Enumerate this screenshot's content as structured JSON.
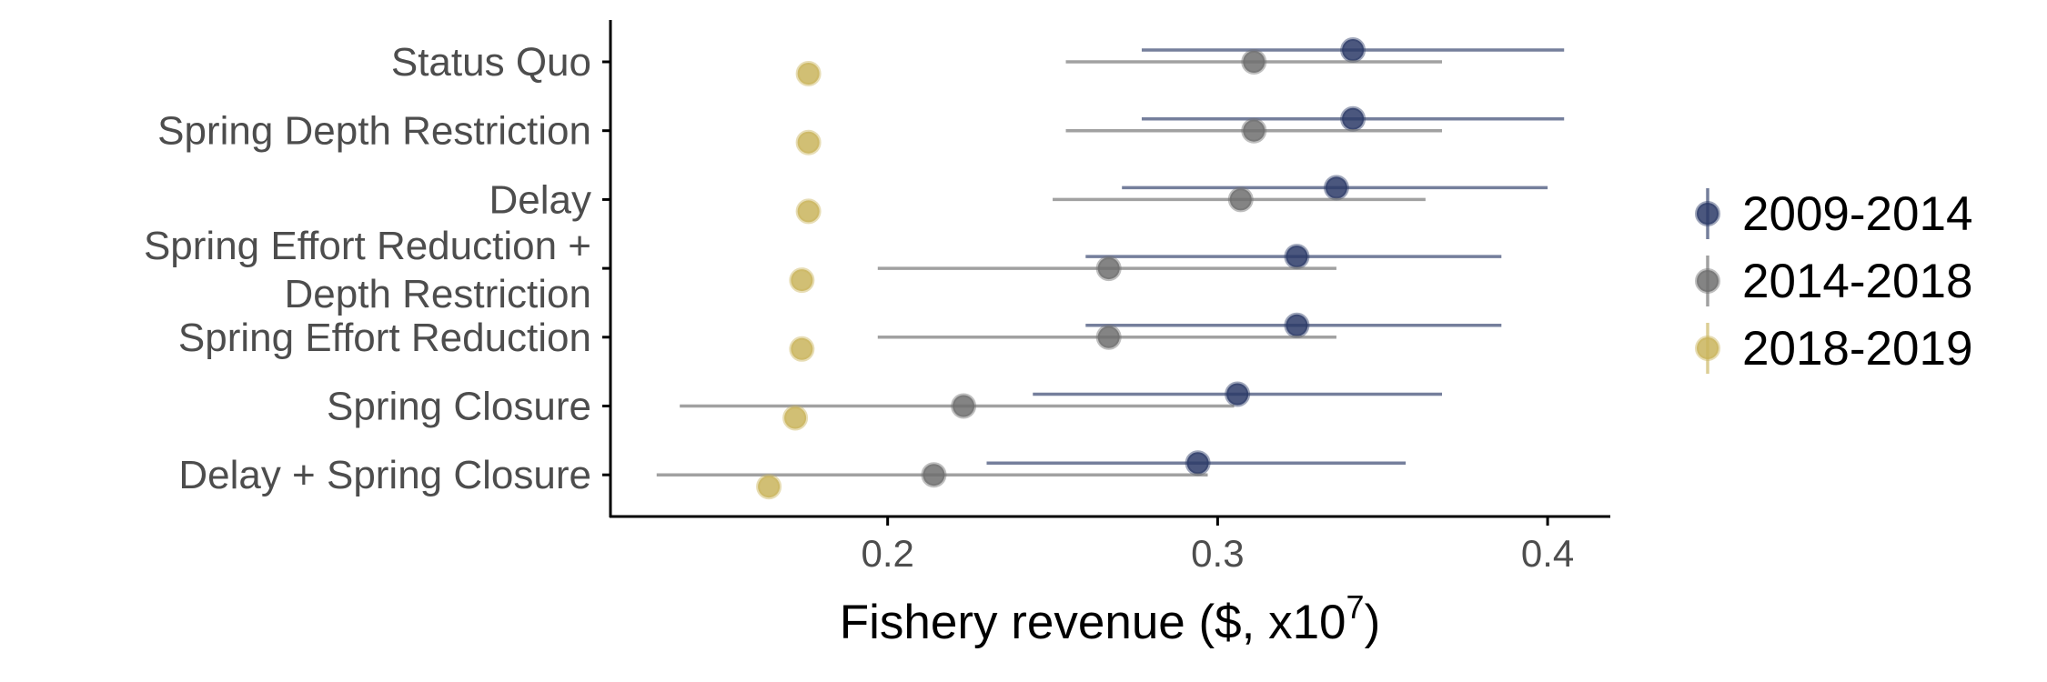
{
  "chart_data": {
    "type": "scatter",
    "subtype": "dot-and-whisker",
    "title": "",
    "xlabel": {
      "prefix": "Fishery revenue ($, x10",
      "superscript": "7",
      "suffix": ")"
    },
    "ylabel": "",
    "xlim": [
      0.116,
      0.419
    ],
    "xticks": [
      0.2,
      0.3,
      0.4
    ],
    "xtick_labels": [
      "0.2",
      "0.3",
      "0.4"
    ],
    "grid": false,
    "legend_position": "right",
    "categories": [
      [
        "Status Quo"
      ],
      [
        "Spring Depth Restriction"
      ],
      [
        "Delay"
      ],
      [
        "Spring Effort Reduction +",
        "Depth Restriction"
      ],
      [
        "Spring Effort Reduction"
      ],
      [
        "Spring Closure"
      ],
      [
        "Delay + Spring Closure"
      ]
    ],
    "series": [
      {
        "name": "2009-2014",
        "color": "#2b3a67",
        "values": [
          0.341,
          0.341,
          0.336,
          0.324,
          0.324,
          0.306,
          0.294
        ],
        "lower": [
          0.277,
          0.277,
          0.271,
          0.26,
          0.26,
          0.244,
          0.23
        ],
        "upper": [
          0.405,
          0.405,
          0.4,
          0.386,
          0.386,
          0.368,
          0.357
        ]
      },
      {
        "name": "2014-2018",
        "color": "#6e6e6e",
        "values": [
          0.311,
          0.311,
          0.307,
          0.267,
          0.267,
          0.223,
          0.214
        ],
        "lower": [
          0.254,
          0.254,
          0.25,
          0.197,
          0.197,
          0.137,
          0.13
        ],
        "upper": [
          0.368,
          0.368,
          0.363,
          0.336,
          0.336,
          0.305,
          0.297
        ]
      },
      {
        "name": "2018-2019",
        "color": "#c9b45c",
        "values": [
          0.176,
          0.176,
          0.176,
          0.174,
          0.174,
          0.172,
          0.164
        ],
        "lower": [
          null,
          null,
          null,
          null,
          null,
          null,
          null
        ],
        "upper": [
          null,
          null,
          null,
          null,
          null,
          null,
          null
        ]
      }
    ]
  }
}
